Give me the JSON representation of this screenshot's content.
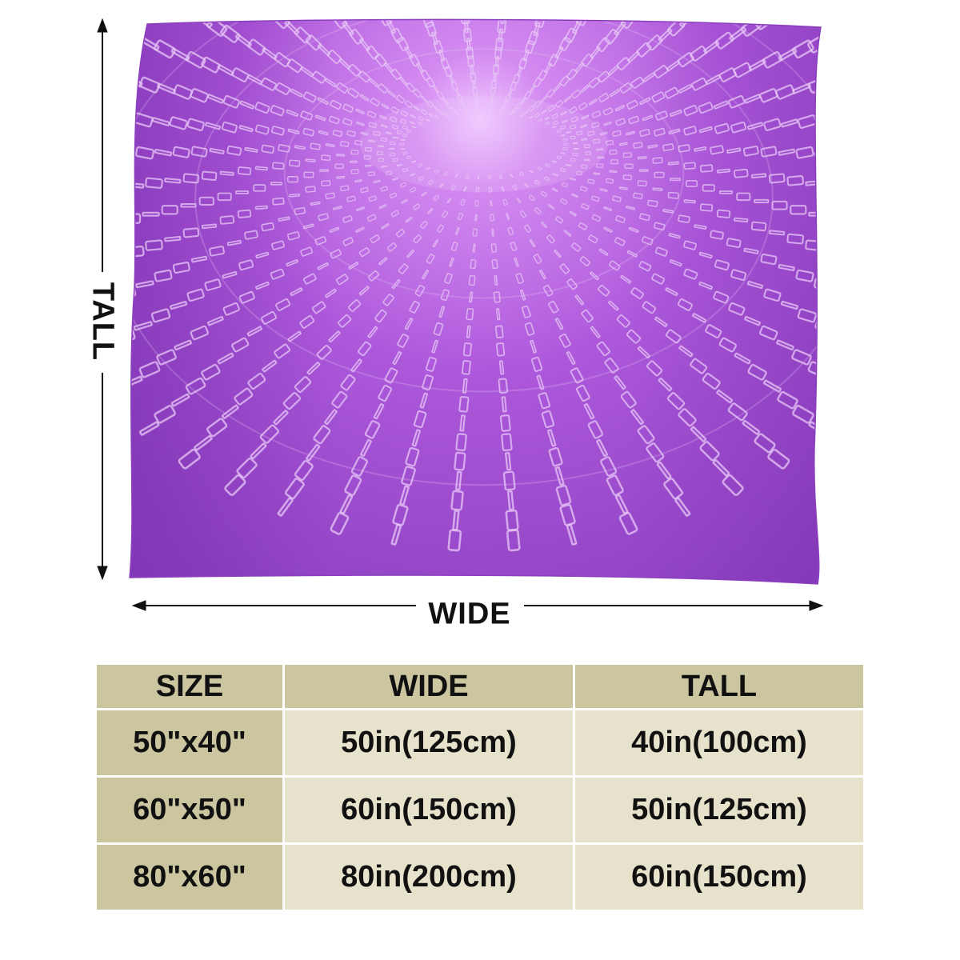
{
  "product": {
    "colors": {
      "blanket_base": "#a050cc",
      "blanket_dark": "#8a3fbf",
      "glyph": "#e8c8f5",
      "table_header": "#ccc6a0",
      "table_size_col": "#ccc6a0",
      "table_body": "#e7e2cb"
    },
    "icons": [
      "double-arrow-vertical-icon",
      "double-arrow-horizontal-icon"
    ]
  },
  "dimensions": {
    "tall_label": "TALL",
    "wide_label": "WIDE"
  },
  "size_table": {
    "headers": [
      "SIZE",
      "WIDE",
      "TALL"
    ],
    "rows": [
      {
        "size": "50\"x40\"",
        "wide": "50in(125cm)",
        "tall": "40in(100cm)"
      },
      {
        "size": "60\"x50\"",
        "wide": "60in(150cm)",
        "tall": "50in(125cm)"
      },
      {
        "size": "80\"x60\"",
        "wide": "80in(200cm)",
        "tall": "60in(150cm)"
      }
    ]
  }
}
